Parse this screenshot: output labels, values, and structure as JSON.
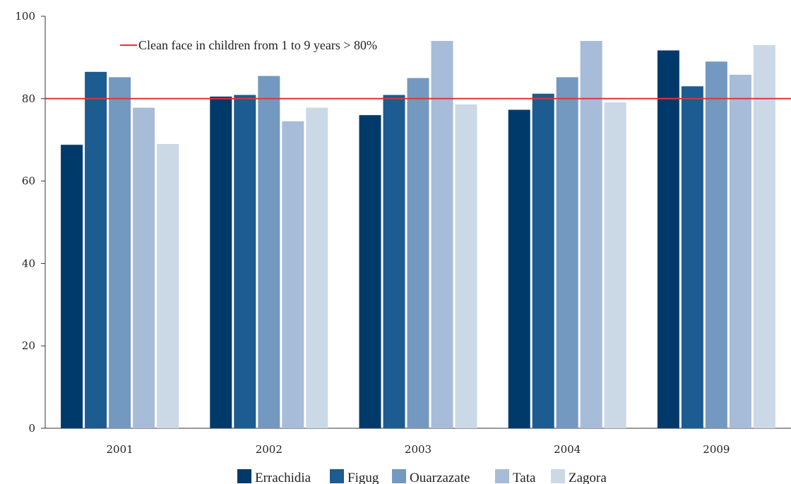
{
  "chart_data": {
    "type": "bar",
    "categories": [
      "2001",
      "2002",
      "2003",
      "2004",
      "2009"
    ],
    "series": [
      {
        "name": "Errachidia",
        "color": "#003a6b",
        "values": [
          68.8,
          80.5,
          76.0,
          77.3,
          91.7
        ]
      },
      {
        "name": "Figug",
        "color": "#1c5c91",
        "values": [
          86.5,
          80.9,
          80.9,
          81.2,
          83.0
        ]
      },
      {
        "name": "Ouarzazate",
        "color": "#7499c1",
        "values": [
          85.2,
          85.5,
          85.0,
          85.2,
          89.0
        ]
      },
      {
        "name": "Tata",
        "color": "#a6bcd8",
        "values": [
          77.8,
          74.5,
          94.0,
          94.0,
          85.8
        ]
      },
      {
        "name": "Zagora",
        "color": "#cbd8e6",
        "values": [
          69.0,
          77.8,
          78.6,
          79.1,
          93.0
        ]
      }
    ],
    "yticks": [
      "0",
      "20",
      "40",
      "60",
      "80",
      "100"
    ],
    "ylim": [
      0,
      100
    ],
    "reference_line": {
      "value": 80,
      "label": "Clean face in children from 1 to 9 years > 80%",
      "color": "#e8303a"
    },
    "legend_position": "bottom-center",
    "grid": false
  }
}
